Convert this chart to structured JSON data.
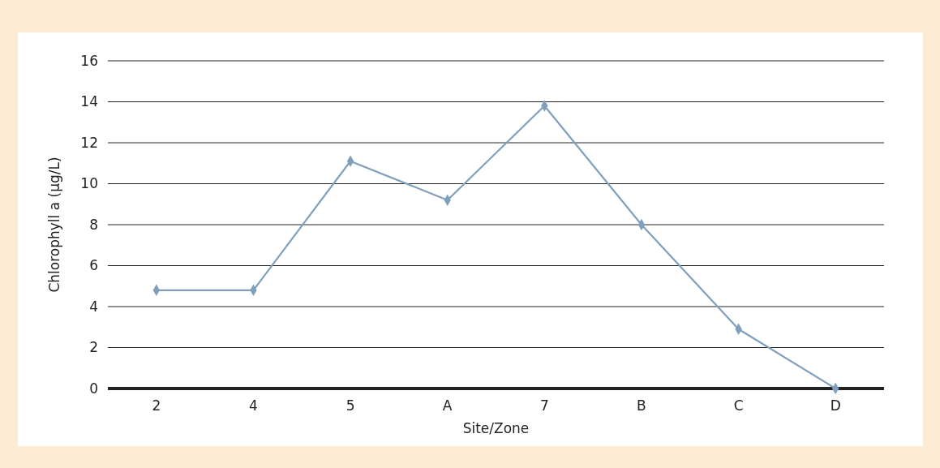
{
  "chart_data": {
    "type": "line",
    "xlabel": "Site/Zone",
    "ylabel": "Chlorophyll a (µg/L)",
    "categories": [
      "2",
      "4",
      "5",
      "A",
      "7",
      "B",
      "C",
      "D"
    ],
    "series": [
      {
        "color": "#7f9fbd",
        "values": [
          4.8,
          4.8,
          11.1,
          9.2,
          13.8,
          8.0,
          2.9,
          0.0
        ]
      }
    ],
    "ylim": [
      0,
      16
    ],
    "yticks": [
      0,
      2,
      4,
      6,
      8,
      10,
      12,
      14,
      16
    ],
    "grid": "y",
    "marker": "diamond",
    "line_style": "solid"
  }
}
